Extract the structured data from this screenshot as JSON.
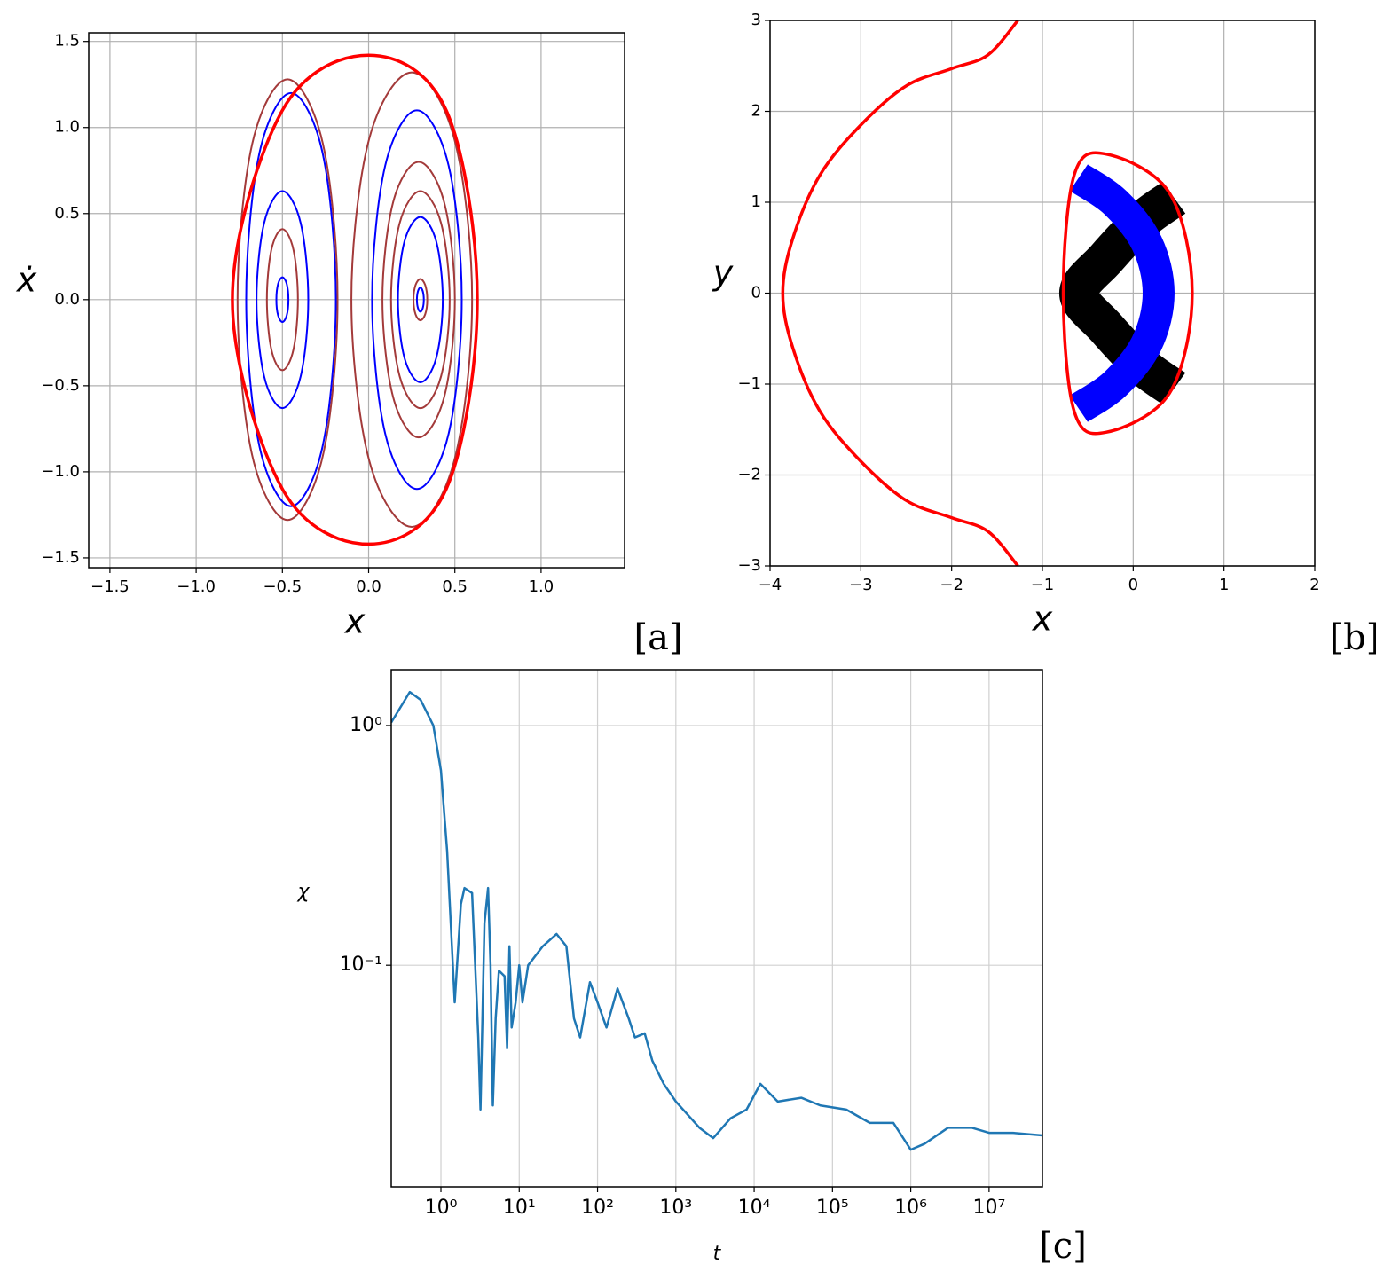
{
  "chart_data": [
    {
      "type": "line",
      "panel_label": "[a]",
      "xlabel": "x",
      "ylabel": "ẋ",
      "grid": true,
      "xlim": [
        -1.623,
        1.484
      ],
      "ylim": [
        -1.557,
        1.55
      ],
      "xticks": [
        {
          "value": -1.5,
          "label": "−1.5"
        },
        {
          "value": -1,
          "label": "−1.0"
        },
        {
          "value": -0.5,
          "label": "−0.5"
        },
        {
          "value": 0,
          "label": "0.0"
        },
        0.5,
        {
          "value": 1,
          "label": "1.0"
        }
      ],
      "yticks": [
        {
          "value": -1.5,
          "label": "−1.5"
        },
        {
          "value": -1,
          "label": "−1.0"
        },
        {
          "value": -0.5,
          "label": "−0.5"
        },
        {
          "value": 0,
          "label": "0.0"
        },
        0.5,
        {
          "value": 1,
          "label": "1.0"
        },
        1.5
      ],
      "series": [
        {
          "color": "#0000ff",
          "linewidth": 2,
          "closed": true,
          "x": [
            -0.465,
            -0.475,
            -0.5,
            -0.525,
            -0.535,
            -0.525,
            -0.5,
            -0.475,
            null,
            -0.35,
            -0.394,
            -0.5,
            -0.606,
            -0.65,
            -0.606,
            -0.5,
            -0.394,
            null,
            0.32,
            0.314,
            0.3,
            0.286,
            0.28,
            0.286,
            0.3,
            0.314,
            null,
            0.43,
            0.392,
            0.3,
            0.208,
            0.17,
            0.208,
            0.3,
            0.392,
            null,
            0.54,
            0.464,
            0.28,
            0.096,
            0.02,
            0.096,
            0.28,
            0.464,
            null,
            -0.19,
            -0.266,
            -0.45,
            -0.634,
            -0.71,
            -0.634,
            -0.45,
            -0.266
          ],
          "y": [
            0,
            0.092,
            0.13,
            0.092,
            0,
            -0.092,
            -0.13,
            -0.092,
            null,
            0,
            0.445,
            0.63,
            0.445,
            0,
            -0.445,
            -0.63,
            -0.445,
            null,
            0,
            0.049,
            0.07,
            0.049,
            0,
            -0.049,
            -0.07,
            -0.049,
            null,
            0,
            0.339,
            0.48,
            0.339,
            0,
            -0.339,
            -0.48,
            -0.339,
            null,
            0,
            0.778,
            1.1,
            0.778,
            0,
            -0.778,
            -1.1,
            -0.778,
            null,
            0,
            0.848,
            1.2,
            0.848,
            0,
            -0.848,
            -1.2,
            -0.848
          ]
        },
        {
          "color": "#a33a3a",
          "linewidth": 2,
          "closed": true,
          "x": [
            -0.41,
            -0.436,
            -0.5,
            -0.564,
            -0.59,
            -0.564,
            -0.5,
            -0.436,
            null,
            -0.18,
            -0.265,
            -0.47,
            -0.675,
            -0.76,
            -0.675,
            -0.47,
            -0.265,
            null,
            0.34,
            0.328,
            0.3,
            0.272,
            0.26,
            0.272,
            0.3,
            0.328,
            null,
            0.47,
            0.42,
            0.3,
            0.18,
            0.13,
            0.18,
            0.3,
            0.42,
            null,
            0.5,
            0.438,
            0.29,
            0.142,
            0.08,
            0.142,
            0.29,
            0.438,
            null,
            0.6,
            0.497,
            0.25,
            0.003,
            -0.1,
            0.003,
            0.25,
            0.497
          ],
          "y": [
            0,
            0.29,
            0.41,
            0.29,
            0,
            -0.29,
            -0.41,
            -0.29,
            null,
            0,
            0.905,
            1.28,
            0.905,
            0,
            -0.905,
            -1.28,
            -0.905,
            null,
            0,
            0.085,
            0.12,
            0.085,
            0,
            -0.085,
            -0.12,
            -0.085,
            null,
            0,
            0.445,
            0.63,
            0.445,
            0,
            -0.445,
            -0.63,
            -0.445,
            null,
            0,
            0.566,
            0.8,
            0.566,
            0,
            -0.566,
            -0.8,
            -0.566,
            null,
            0,
            0.933,
            1.32,
            0.933,
            0,
            -0.933,
            -1.32,
            -0.933
          ]
        },
        {
          "color": "#ff0000",
          "linewidth": 3.5,
          "closed": true,
          "x": [
            0.63,
            0.45,
            0,
            -0.5,
            -0.79,
            -0.5,
            0,
            0.45
          ],
          "y": [
            0,
            1.1,
            1.42,
            1.1,
            0,
            -1.1,
            -1.42,
            -1.1
          ]
        }
      ]
    },
    {
      "type": "line",
      "panel_label": "[b]",
      "xlabel": "x",
      "ylabel": "y",
      "grid": true,
      "xlim": [
        -4,
        2
      ],
      "ylim": [
        -3,
        3
      ],
      "xticks": [
        {
          "value": -4,
          "label": "−4"
        },
        {
          "value": -3,
          "label": "−3"
        },
        {
          "value": -2,
          "label": "−2"
        },
        {
          "value": -1,
          "label": "−1"
        },
        0,
        1,
        2
      ],
      "yticks": [
        {
          "value": -3,
          "label": "−3"
        },
        {
          "value": -2,
          "label": "−2"
        },
        {
          "value": -1,
          "label": "−1"
        },
        0,
        1,
        2,
        3
      ],
      "series": [
        {
          "color": "#000000",
          "linewidth": 44,
          "closed": false,
          "x": [
            0.45,
            0.1,
            -0.3,
            -0.6,
            -0.3,
            0.1,
            0.45
          ],
          "y": [
            1.05,
            0.8,
            0.38,
            0,
            -0.38,
            -0.8,
            -1.05
          ]
        },
        {
          "color": "#0000ff",
          "linewidth": 36,
          "closed": false,
          "x": [
            -0.6,
            -0.2,
            0.15,
            0.28,
            0.15,
            -0.2,
            -0.6
          ],
          "y": [
            1.27,
            1.0,
            0.55,
            0,
            -0.55,
            -1.0,
            -1.27
          ]
        },
        {
          "color": "#ff0000",
          "linewidth": 3.5,
          "closed": true,
          "x": [
            0.65,
            0.4,
            -0.3,
            -0.65,
            -0.77,
            -0.65,
            -0.3,
            0.4
          ],
          "y": [
            0,
            1.1,
            1.53,
            1.3,
            0,
            -1.3,
            -1.53,
            -1.1
          ]
        },
        {
          "color": "#ff0000",
          "linewidth": 3.5,
          "closed": false,
          "x": [
            -1.27,
            -1.6,
            -2.0,
            -2.5,
            -3.0,
            -3.45,
            -3.75,
            -3.86,
            -3.75,
            -3.45,
            -3.0,
            -2.5,
            -2.0,
            -1.6,
            -1.27
          ],
          "y": [
            3,
            2.62,
            2.47,
            2.28,
            1.85,
            1.3,
            0.6,
            0,
            -0.6,
            -1.3,
            -1.85,
            -2.28,
            -2.47,
            -2.62,
            -3
          ]
        }
      ]
    },
    {
      "type": "line",
      "panel_label": "[c]",
      "xlabel": "t",
      "ylabel": "χ",
      "grid": true,
      "xlog": true,
      "ylog": true,
      "xlim": [
        0.232,
        48000000
      ],
      "ylim": [
        0.0119,
        1.71
      ],
      "xticks": [
        {
          "value": 1,
          "label": "10⁰"
        },
        {
          "value": 10,
          "label": "10¹"
        },
        {
          "value": 100,
          "label": "10²"
        },
        {
          "value": 1000,
          "label": "10³"
        },
        {
          "value": 10000,
          "label": "10⁴"
        },
        {
          "value": 100000,
          "label": "10⁵"
        },
        {
          "value": 1000000,
          "label": "10⁶"
        },
        {
          "value": 10000000,
          "label": "10⁷"
        }
      ],
      "yticks": [
        {
          "value": 0.1,
          "label": "10⁻¹"
        },
        {
          "value": 1,
          "label": "10⁰"
        }
      ],
      "series": [
        {
          "color": "#1f77b4",
          "linewidth": 2.5,
          "closed": false,
          "x": [
            0.232,
            0.4,
            0.55,
            0.8,
            1.0,
            1.2,
            1.5,
            1.8,
            2.0,
            2.5,
            3.0,
            3.2,
            3.6,
            4.0,
            4.3,
            4.6,
            5.0,
            5.5,
            6.5,
            7,
            7.5,
            8,
            9,
            10,
            11,
            13,
            20,
            30,
            40,
            50,
            60,
            80,
            100,
            130,
            180,
            250,
            300,
            400,
            500,
            700,
            1000,
            2000,
            3000,
            5000,
            8000,
            12000,
            20000,
            40000,
            70000,
            150000,
            300000,
            600000,
            1000000,
            1500000,
            3000000,
            6000000,
            10000000,
            20000000,
            48000000
          ],
          "y": [
            1.03,
            1.38,
            1.28,
            1.0,
            0.65,
            0.3,
            0.07,
            0.18,
            0.21,
            0.2,
            0.05,
            0.025,
            0.15,
            0.21,
            0.1,
            0.026,
            0.06,
            0.095,
            0.09,
            0.045,
            0.12,
            0.055,
            0.07,
            0.1,
            0.07,
            0.1,
            0.12,
            0.135,
            0.12,
            0.06,
            0.05,
            0.085,
            0.07,
            0.055,
            0.08,
            0.06,
            0.05,
            0.052,
            0.04,
            0.032,
            0.027,
            0.021,
            0.019,
            0.023,
            0.025,
            0.032,
            0.027,
            0.028,
            0.026,
            0.025,
            0.022,
            0.022,
            0.017,
            0.018,
            0.021,
            0.021,
            0.02,
            0.02,
            0.0195
          ]
        }
      ]
    }
  ]
}
